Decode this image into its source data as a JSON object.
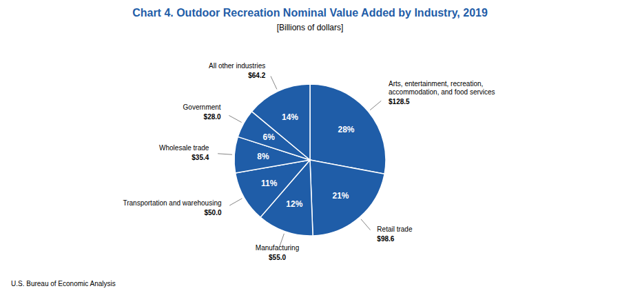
{
  "chart_data": {
    "type": "pie",
    "title": "Chart 4. Outdoor Recreation Nominal Value Added by Industry, 2019",
    "subtitle": "[Billions of dollars]",
    "footnote": "U.S. Bureau of Economic Analysis",
    "categories": [
      "Arts, entertainment, recreation,\naccommodation, and food services",
      "Retail trade",
      "Manufacturing",
      "Transportation and warehousing",
      "Wholesale trade",
      "Government",
      "All other industries"
    ],
    "values": [
      128.5,
      98.6,
      55.0,
      50.0,
      35.4,
      28.0,
      64.2
    ],
    "value_labels": [
      "$128.5",
      "$98.6",
      "$55.0",
      "$50.0",
      "$35.4",
      "$28.0",
      "$64.2"
    ],
    "percent_labels": [
      "28%",
      "21%",
      "12%",
      "11%",
      "8%",
      "6%",
      "14%"
    ],
    "color": "#1F5DA8",
    "data_labels": true
  }
}
